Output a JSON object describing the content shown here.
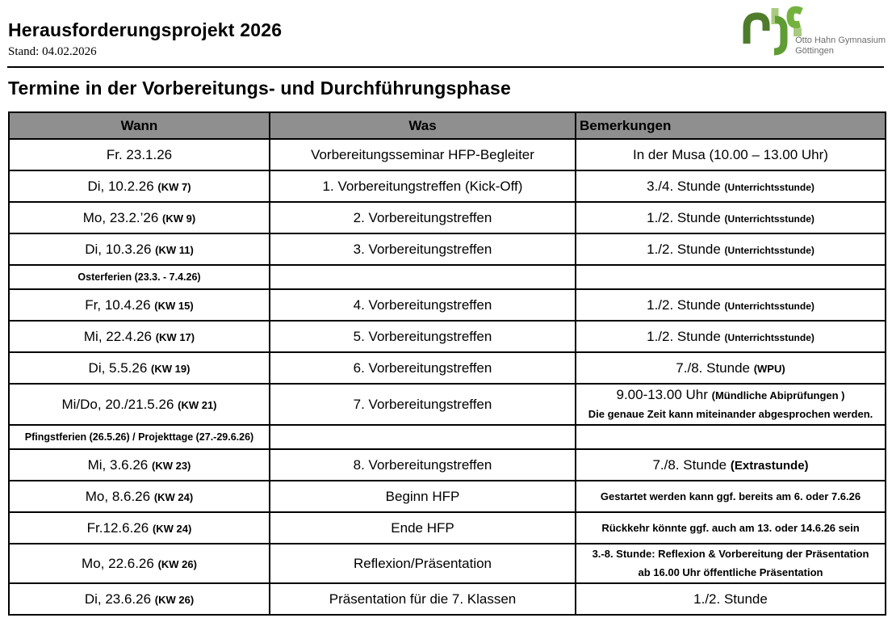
{
  "document": {
    "title": "Herausforderungsprojekt 2026",
    "stand": "Stand: 04.02.2026",
    "section_title": "Termine in der Vorbereitungs- und Durchführungsphase"
  },
  "logo": {
    "name": "ohg-logo",
    "line1": "Otto Hahn Gymnasium",
    "line2": "Göttingen",
    "colors": {
      "dark_green": "#4e7c2b",
      "mid_green": "#5f9c33",
      "bright_green": "#74b23e",
      "light_green": "#a9cb81",
      "text_gray": "#6e6e6e"
    }
  },
  "colors": {
    "table_header_bg": "#8f8f8f",
    "table_border": "#000000"
  },
  "table": {
    "columns": [
      "Wann",
      "Was",
      "Bemerkungen"
    ],
    "rows": [
      {
        "kind": "event",
        "cells": [
          [
            [
              {
                "t": "Fr. 23.1.26",
                "c": "md"
              }
            ]
          ],
          [
            [
              {
                "t": "Vorbereitungsseminar HFP-Begleiter",
                "c": "md"
              }
            ]
          ],
          [
            [
              {
                "t": "In der Musa (10.00 – 13.00 Uhr)",
                "c": "md"
              }
            ]
          ]
        ]
      },
      {
        "kind": "event",
        "cells": [
          [
            [
              {
                "t": "Di, 10.2.26 ",
                "c": "md"
              },
              {
                "t": "(KW 7)",
                "c": "kw"
              }
            ]
          ],
          [
            [
              {
                "t": "1. Vorbereitungstreffen (Kick-Off)",
                "c": "md"
              }
            ]
          ],
          [
            [
              {
                "t": "3./4. Stunde ",
                "c": "md"
              },
              {
                "t": "(Unterrichtsstunde)",
                "c": "sm"
              }
            ]
          ]
        ]
      },
      {
        "kind": "event",
        "cells": [
          [
            [
              {
                "t": "Mo, 23.2.’26 ",
                "c": "md"
              },
              {
                "t": "(KW 9)",
                "c": "kw"
              }
            ]
          ],
          [
            [
              {
                "t": "2. Vorbereitungstreffen",
                "c": "md"
              }
            ]
          ],
          [
            [
              {
                "t": "1./2. Stunde ",
                "c": "md"
              },
              {
                "t": "(Unterrichtsstunde)",
                "c": "sm"
              }
            ]
          ]
        ]
      },
      {
        "kind": "event",
        "cells": [
          [
            [
              {
                "t": "Di, 10.3.26 ",
                "c": "md"
              },
              {
                "t": "(KW 11)",
                "c": "kw"
              }
            ]
          ],
          [
            [
              {
                "t": "3. Vorbereitungstreffen",
                "c": "md"
              }
            ]
          ],
          [
            [
              {
                "t": "1./2. Stunde ",
                "c": "md"
              },
              {
                "t": "(Unterrichtsstunde)",
                "c": "sm"
              }
            ]
          ]
        ]
      },
      {
        "kind": "break",
        "cells": [
          [
            [
              {
                "t": "Osterferien (23.3. - 7.4.26)",
                "c": "brk"
              }
            ]
          ],
          [],
          []
        ]
      },
      {
        "kind": "event",
        "cells": [
          [
            [
              {
                "t": "Fr, 10.4.26 ",
                "c": "md"
              },
              {
                "t": "(KW 15)",
                "c": "kw"
              }
            ]
          ],
          [
            [
              {
                "t": "4. Vorbereitungstreffen",
                "c": "md"
              }
            ]
          ],
          [
            [
              {
                "t": "1./2. Stunde ",
                "c": "md"
              },
              {
                "t": "(Unterrichtsstunde)",
                "c": "sm"
              }
            ]
          ]
        ]
      },
      {
        "kind": "event",
        "cells": [
          [
            [
              {
                "t": "Mi, 22.4.26 ",
                "c": "md"
              },
              {
                "t": "(KW 17)",
                "c": "kw"
              }
            ]
          ],
          [
            [
              {
                "t": "5. Vorbereitungstreffen",
                "c": "md"
              }
            ]
          ],
          [
            [
              {
                "t": "1./2. Stunde ",
                "c": "md"
              },
              {
                "t": "(Unterrichtsstunde)",
                "c": "sm"
              }
            ]
          ]
        ]
      },
      {
        "kind": "event",
        "cells": [
          [
            [
              {
                "t": "Di, 5.5.26 ",
                "c": "md"
              },
              {
                "t": "(KW 19)",
                "c": "kw"
              }
            ]
          ],
          [
            [
              {
                "t": "6. Vorbereitungstreffen",
                "c": "md"
              }
            ]
          ],
          [
            [
              {
                "t": "7./8. Stunde ",
                "c": "md"
              },
              {
                "t": "(WPU)",
                "c": "kw"
              }
            ]
          ]
        ]
      },
      {
        "kind": "event",
        "cells": [
          [
            [
              {
                "t": "Mi/Do, 20./21.5.26 ",
                "c": "md"
              },
              {
                "t": "(KW 21)",
                "c": "kw"
              }
            ]
          ],
          [
            [
              {
                "t": "7. Vorbereitungstreffen",
                "c": "md"
              }
            ]
          ],
          [
            [
              {
                "t": "9.00-13.00 Uhr ",
                "c": "md"
              },
              {
                "t": "(Mündliche Abiprüfungen )",
                "c": "rm"
              }
            ],
            [
              {
                "t": "Die genaue Zeit kann miteinander abgesprochen werden.",
                "c": "rm"
              }
            ]
          ]
        ]
      },
      {
        "kind": "break",
        "cells": [
          [
            [
              {
                "t": "Pfingstferien (26.5.26) / Projekttage (27.-29.6.26)",
                "c": "brk"
              }
            ]
          ],
          [],
          []
        ]
      },
      {
        "kind": "event",
        "cells": [
          [
            [
              {
                "t": "Mi, 3.6.26 ",
                "c": "md"
              },
              {
                "t": "(KW 23)",
                "c": "kw"
              }
            ]
          ],
          [
            [
              {
                "t": "8. Vorbereitungstreffen",
                "c": "md"
              }
            ]
          ],
          [
            [
              {
                "t": "7./8. Stunde ",
                "c": "md"
              },
              {
                "t": "(Extrastunde)",
                "c": "mb"
              }
            ]
          ]
        ]
      },
      {
        "kind": "event",
        "cells": [
          [
            [
              {
                "t": "Mo, 8.6.26 ",
                "c": "md"
              },
              {
                "t": "(KW 24)",
                "c": "kw"
              }
            ]
          ],
          [
            [
              {
                "t": "Beginn HFP",
                "c": "md"
              }
            ]
          ],
          [
            [
              {
                "t": "Gestartet werden kann ggf. bereits am 6. oder 7.6.26",
                "c": "rm"
              }
            ]
          ]
        ]
      },
      {
        "kind": "event",
        "cells": [
          [
            [
              {
                "t": "Fr.12.6.26 ",
                "c": "md"
              },
              {
                "t": "(KW 24)",
                "c": "kw"
              }
            ]
          ],
          [
            [
              {
                "t": "Ende HFP",
                "c": "md"
              }
            ]
          ],
          [
            [
              {
                "t": "Rückkehr könnte ggf. auch am 13. oder 14.6.26 sein",
                "c": "rm"
              }
            ]
          ]
        ]
      },
      {
        "kind": "event",
        "cells": [
          [
            [
              {
                "t": "Mo, 22.6.26 ",
                "c": "md"
              },
              {
                "t": "(KW 26)",
                "c": "kw"
              }
            ]
          ],
          [
            [
              {
                "t": "Reflexion/Präsentation",
                "c": "md"
              }
            ]
          ],
          [
            [
              {
                "t": "3.-8. Stunde: Reflexion & Vorbereitung der Präsentation",
                "c": "rm"
              }
            ],
            [
              {
                "t": "ab 16.00 Uhr öffentliche Präsentation",
                "c": "rm"
              }
            ]
          ]
        ]
      },
      {
        "kind": "event",
        "cells": [
          [
            [
              {
                "t": "Di, 23.6.26 ",
                "c": "md"
              },
              {
                "t": "(KW 26)",
                "c": "kw"
              }
            ]
          ],
          [
            [
              {
                "t": "Präsentation für die 7. Klassen",
                "c": "md"
              }
            ]
          ],
          [
            [
              {
                "t": "1./2. Stunde",
                "c": "md"
              }
            ]
          ]
        ]
      }
    ]
  }
}
